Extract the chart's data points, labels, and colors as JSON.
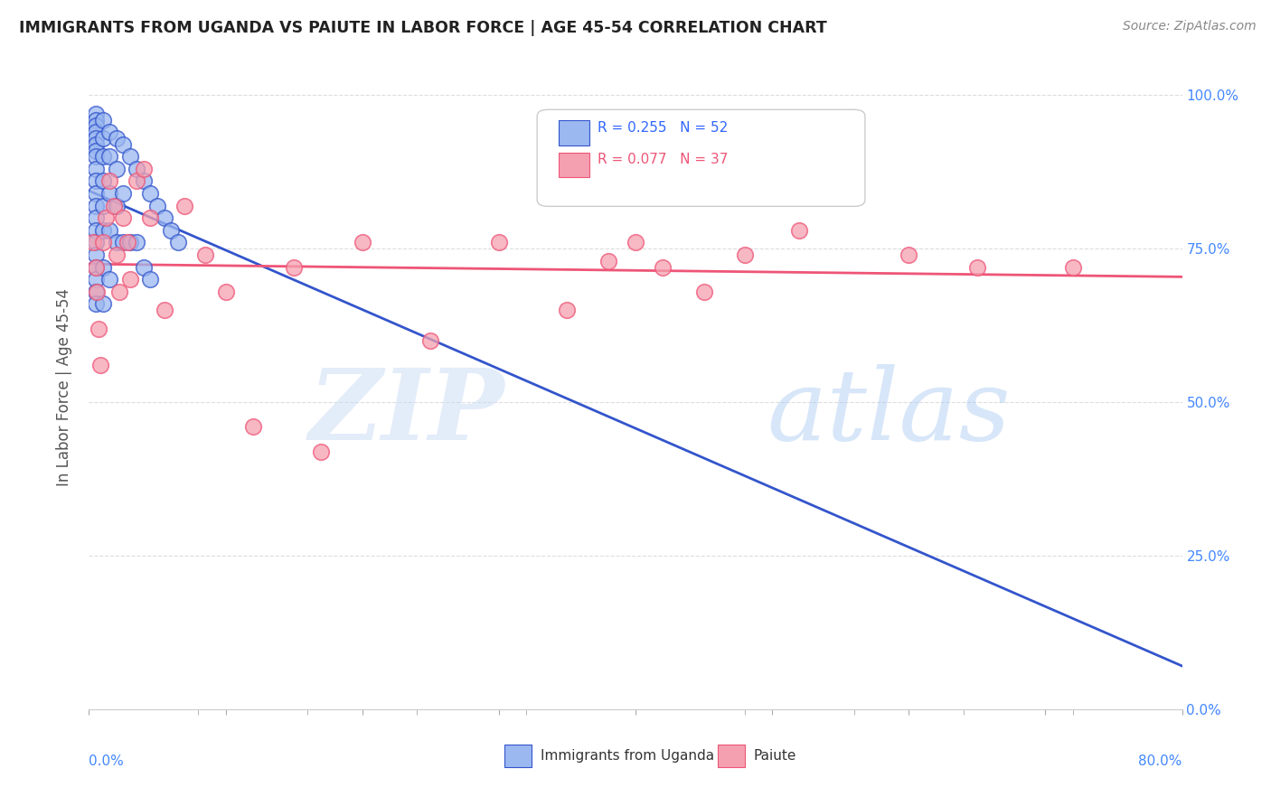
{
  "title": "IMMIGRANTS FROM UGANDA VS PAIUTE IN LABOR FORCE | AGE 45-54 CORRELATION CHART",
  "source": "Source: ZipAtlas.com",
  "ylabel": "In Labor Force | Age 45-54",
  "xlim": [
    0.0,
    0.8
  ],
  "ylim": [
    0.0,
    1.05
  ],
  "legend_label1": "Immigrants from Uganda",
  "legend_label2": "Paiute",
  "R1": 0.255,
  "N1": 52,
  "R2": 0.077,
  "N2": 37,
  "color1": "#9BB8F0",
  "color2": "#F5A0B0",
  "trendline_color1": "#3355CC",
  "trendline_color2": "#EE5577",
  "background_color": "#FFFFFF",
  "uganda_x": [
    0.005,
    0.005,
    0.005,
    0.005,
    0.005,
    0.005,
    0.005,
    0.005,
    0.005,
    0.005,
    0.005,
    0.005,
    0.005,
    0.005,
    0.005,
    0.005,
    0.005,
    0.005,
    0.005,
    0.005,
    0.01,
    0.01,
    0.01,
    0.01,
    0.01,
    0.01,
    0.01,
    0.01,
    0.015,
    0.015,
    0.015,
    0.015,
    0.015,
    0.02,
    0.02,
    0.02,
    0.02,
    0.025,
    0.025,
    0.025,
    0.03,
    0.03,
    0.035,
    0.035,
    0.04,
    0.04,
    0.045,
    0.045,
    0.05,
    0.055,
    0.06,
    0.065
  ],
  "uganda_y": [
    0.97,
    0.96,
    0.95,
    0.94,
    0.93,
    0.92,
    0.91,
    0.9,
    0.88,
    0.86,
    0.84,
    0.82,
    0.8,
    0.78,
    0.76,
    0.74,
    0.72,
    0.7,
    0.68,
    0.66,
    0.96,
    0.93,
    0.9,
    0.86,
    0.82,
    0.78,
    0.72,
    0.66,
    0.94,
    0.9,
    0.84,
    0.78,
    0.7,
    0.93,
    0.88,
    0.82,
    0.76,
    0.92,
    0.84,
    0.76,
    0.9,
    0.76,
    0.88,
    0.76,
    0.86,
    0.72,
    0.84,
    0.7,
    0.82,
    0.8,
    0.78,
    0.76
  ],
  "paiute_x": [
    0.003,
    0.005,
    0.006,
    0.007,
    0.008,
    0.01,
    0.012,
    0.015,
    0.018,
    0.02,
    0.022,
    0.025,
    0.028,
    0.03,
    0.035,
    0.04,
    0.045,
    0.055,
    0.07,
    0.085,
    0.1,
    0.12,
    0.15,
    0.17,
    0.2,
    0.25,
    0.3,
    0.35,
    0.38,
    0.4,
    0.42,
    0.45,
    0.48,
    0.52,
    0.6,
    0.65,
    0.72
  ],
  "paiute_y": [
    0.76,
    0.72,
    0.68,
    0.62,
    0.56,
    0.76,
    0.8,
    0.86,
    0.82,
    0.74,
    0.68,
    0.8,
    0.76,
    0.7,
    0.86,
    0.88,
    0.8,
    0.65,
    0.82,
    0.74,
    0.68,
    0.46,
    0.72,
    0.42,
    0.76,
    0.6,
    0.76,
    0.65,
    0.73,
    0.76,
    0.72,
    0.68,
    0.74,
    0.78,
    0.74,
    0.72,
    0.72
  ]
}
